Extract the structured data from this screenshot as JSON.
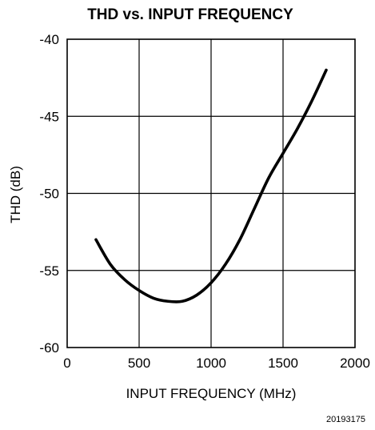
{
  "figure_id": "20193175",
  "chart_data": {
    "type": "line",
    "title": "THD vs. INPUT FREQUENCY",
    "xlabel": "INPUT FREQUENCY (MHz)",
    "ylabel": "THD (dB)",
    "xlim": [
      0,
      2000
    ],
    "ylim": [
      -60,
      -40
    ],
    "xticks": [
      0,
      500,
      1000,
      1500,
      2000
    ],
    "yticks": [
      -40,
      -45,
      -50,
      -55,
      -60
    ],
    "grid": true,
    "series": [
      {
        "x": [
          200,
          300,
          400,
          500,
          600,
          700,
          800,
          900,
          1000,
          1100,
          1200,
          1300,
          1400,
          1500,
          1600,
          1700,
          1800
        ],
        "y": [
          -53.0,
          -54.6,
          -55.6,
          -56.3,
          -56.8,
          -57.0,
          -57.0,
          -56.6,
          -55.8,
          -54.6,
          -53.0,
          -51.0,
          -49.0,
          -47.4,
          -45.8,
          -44.0,
          -42.0
        ]
      }
    ]
  }
}
